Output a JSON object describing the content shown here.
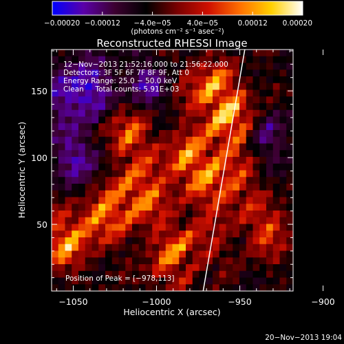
{
  "chart_data": {
    "type": "heatmap",
    "title": "Reconstructed RHESSI Image",
    "xlabel": "Heliocentric X (arcsec)",
    "ylabel": "Heliocentric Y (arcsec)",
    "xlim": [
      -1063,
      -918
    ],
    "ylim": [
      0,
      181
    ],
    "x_ticks": [
      -1050,
      -1000,
      -950,
      -900
    ],
    "x_tick_labels": [
      "−1050",
      "−1000",
      "−950",
      "−900"
    ],
    "y_ticks": [
      50,
      100,
      150
    ],
    "y_tick_labels": [
      "50",
      "100",
      "150"
    ],
    "colorbar": {
      "range": [
        -0.0002,
        0.0002
      ],
      "ticks": [
        -0.0002,
        -0.00012,
        -4e-05,
        4e-05,
        0.00012,
        0.0002
      ],
      "tick_labels": [
        "−0.00020",
        "−0.00012",
        "−4.0e−05",
        "4.0e−05",
        "0.00012",
        "0.00020"
      ],
      "unit_label": "(photons cm⁻² s⁻¹ asec⁻²)",
      "colormap": [
        "#0000ff",
        "#5a00a8",
        "#3c0030",
        "#000000",
        "#7a0000",
        "#d01000",
        "#ff7000",
        "#ffd000",
        "#ffffff"
      ]
    },
    "annotations": [
      "12−Nov−2013 21:52:16.000 to 21:56:22.000",
      "Detectors: 3F 5F 6F 7F 8F 9F, Att 0",
      "Energy Range: 25.0 − 50.0 keV",
      "Clean     Total counts: 5.91E+03"
    ],
    "peak_label": "Position of Peak = [−978,113]",
    "peak": [
      -978,
      113
    ],
    "limb_line": [
      [
        -972,
        0
      ],
      [
        -947,
        181
      ]
    ],
    "grid": false
  },
  "footer": {
    "timestamp": "20−Nov−2013 19:04"
  }
}
